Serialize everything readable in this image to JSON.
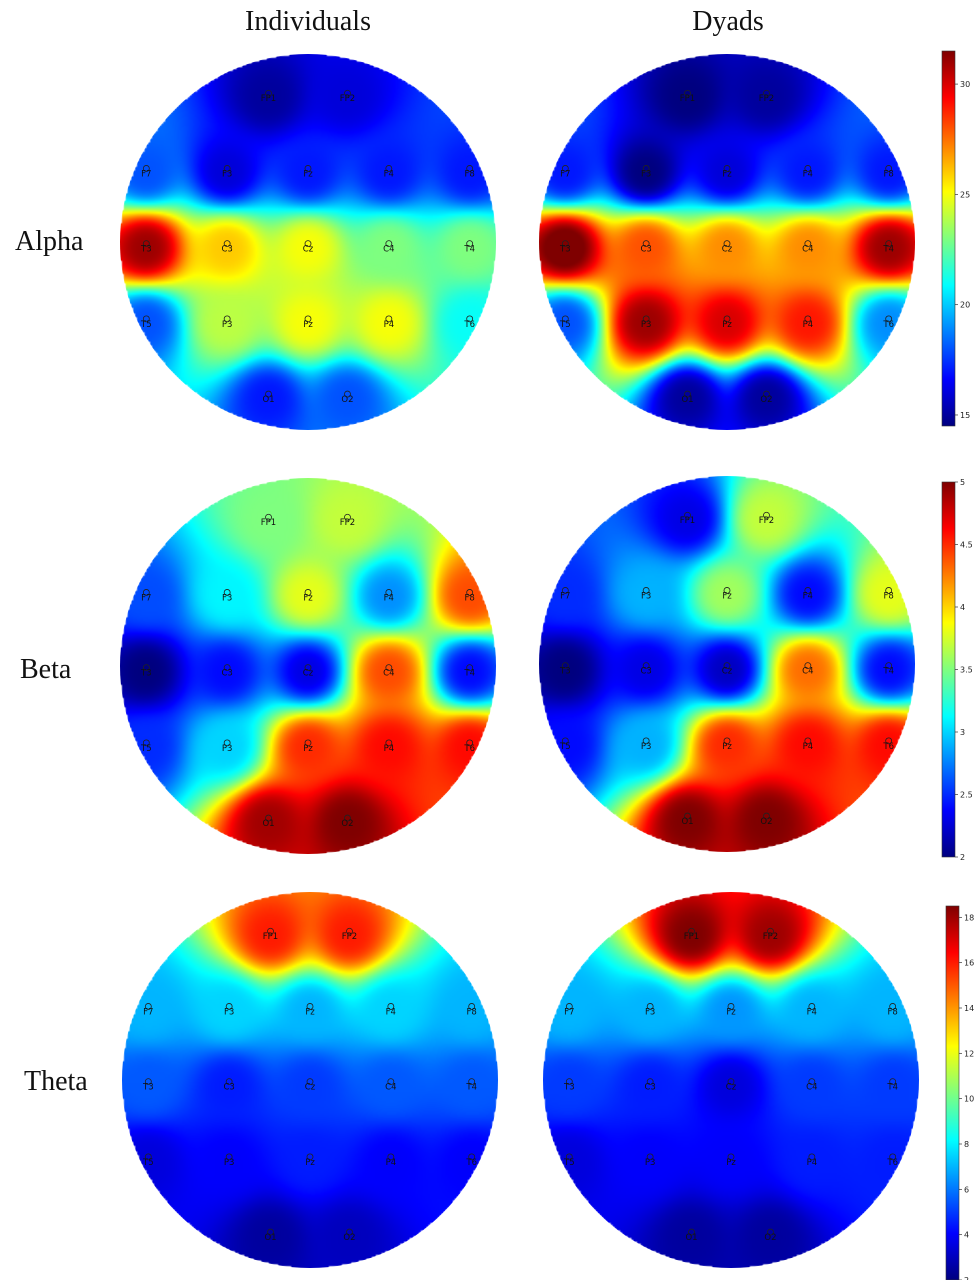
{
  "columns": [
    "Individuals",
    "Dyads"
  ],
  "rows": [
    {
      "label": "Alpha",
      "colorbar": {
        "min": 14.5,
        "max": 31.5,
        "ticks": [
          "15",
          "20",
          "25",
          "30"
        ],
        "tick_values": [
          15,
          20,
          25,
          30
        ]
      },
      "maps": [
        {
          "id": "alpha-individuals",
          "values": {
            "FP1": 15,
            "FP2": 16,
            "F7": 18,
            "F3": 16,
            "Fz": 17,
            "F4": 17,
            "F8": 17,
            "T3": 31,
            "C3": 26,
            "Cz": 25,
            "C4": 23,
            "T4": 23,
            "T5": 18,
            "P3": 24,
            "Pz": 25,
            "P4": 25,
            "T6": 21,
            "O1": 17,
            "O2": 18
          }
        },
        {
          "id": "alpha-dyads",
          "values": {
            "FP1": 14.5,
            "FP2": 15,
            "F7": 17,
            "F3": 14.5,
            "Fz": 16,
            "F4": 17,
            "F8": 17,
            "T3": 32,
            "C3": 28,
            "Cz": 27,
            "C4": 27,
            "T4": 31,
            "T5": 18,
            "P3": 31,
            "Pz": 30,
            "P4": 29,
            "T6": 19,
            "O1": 15,
            "O2": 15
          }
        }
      ]
    },
    {
      "label": "Beta",
      "colorbar": {
        "min": 2,
        "max": 5,
        "ticks": [
          "2",
          "2.5",
          "3",
          "3.5",
          "4",
          "4.5",
          "5"
        ],
        "tick_values": [
          2,
          2.5,
          3,
          3.5,
          4,
          4.5,
          5
        ]
      },
      "maps": [
        {
          "id": "beta-individuals",
          "values": {
            "FP1": 3.5,
            "FP2": 3.7,
            "F7": 2.6,
            "F3": 3.1,
            "Fz": 3.8,
            "F4": 2.8,
            "F8": 4.4,
            "T3": 2.0,
            "C3": 2.4,
            "Cz": 2.3,
            "C4": 4.4,
            "T4": 2.4,
            "T5": 2.5,
            "P3": 3.0,
            "Pz": 4.5,
            "P4": 4.6,
            "T6": 4.6,
            "O1": 4.9,
            "O2": 5.0
          }
        },
        {
          "id": "beta-dyads",
          "values": {
            "FP1": 2.3,
            "FP2": 3.7,
            "F7": 2.5,
            "F3": 2.9,
            "Fz": 3.6,
            "F4": 2.4,
            "F8": 3.8,
            "T3": 2.0,
            "C3": 2.3,
            "Cz": 2.2,
            "C4": 4.3,
            "T4": 2.4,
            "T5": 2.4,
            "P3": 2.9,
            "Pz": 4.5,
            "P4": 4.6,
            "T6": 4.6,
            "O1": 5.0,
            "O2": 5.0
          }
        }
      ]
    },
    {
      "label": "Theta",
      "colorbar": {
        "min": 2,
        "max": 18.5,
        "ticks": [
          "2",
          "4",
          "6",
          "8",
          "10",
          "12",
          "14",
          "16",
          "18"
        ],
        "tick_values": [
          2,
          4,
          6,
          8,
          10,
          12,
          14,
          16,
          18
        ]
      },
      "maps": [
        {
          "id": "theta-individuals",
          "values": {
            "FP1": 16,
            "FP2": 16,
            "F7": 7,
            "F3": 7.5,
            "Fz": 7,
            "F4": 7.5,
            "F8": 7,
            "T3": 5.5,
            "C3": 4.5,
            "Cz": 5,
            "C4": 5.5,
            "T4": 5.5,
            "T5": 3.5,
            "P3": 4,
            "Pz": 4.5,
            "P4": 4,
            "T6": 4,
            "O1": 2.5,
            "O2": 3
          }
        },
        {
          "id": "theta-dyads",
          "values": {
            "FP1": 18.5,
            "FP2": 18,
            "F7": 7,
            "F3": 7,
            "Fz": 6.5,
            "F4": 7,
            "F8": 7,
            "T3": 5,
            "C3": 4.5,
            "Cz": 3.5,
            "C4": 5,
            "T4": 5,
            "T5": 3.5,
            "P3": 4,
            "Pz": 4,
            "P4": 4.5,
            "T6": 4.5,
            "O1": 2.5,
            "O2": 2.5
          }
        }
      ]
    }
  ],
  "electrodes": [
    "FP1",
    "FP2",
    "F7",
    "F3",
    "Fz",
    "F4",
    "F8",
    "T3",
    "C3",
    "Cz",
    "C4",
    "T4",
    "T5",
    "P3",
    "Pz",
    "P4",
    "T6",
    "O1",
    "O2"
  ],
  "colormap": [
    "#00007f",
    "#0000ff",
    "#007fff",
    "#00ffff",
    "#7fff7f",
    "#ffff00",
    "#ff7f00",
    "#ff0000",
    "#7f0000"
  ]
}
